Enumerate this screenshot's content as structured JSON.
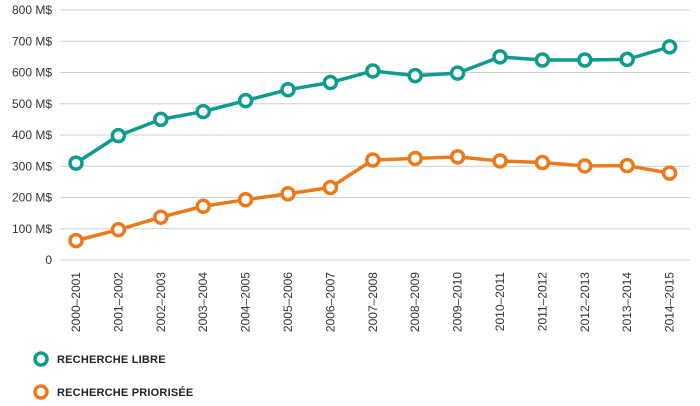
{
  "chart_data": {
    "type": "line",
    "categories": [
      "2000–2001",
      "2001–2002",
      "2002–2003",
      "2003–2004",
      "2004–2005",
      "2005–2006",
      "2006–2007",
      "2007–2008",
      "2008–2009",
      "2009–2010",
      "2010–2011",
      "2011–2012",
      "2012–2013",
      "2013–2014",
      "2014–2015"
    ],
    "y_ticks": [
      "0",
      "100 M$",
      "200 M$",
      "300 M$",
      "400 M$",
      "500 M$",
      "600 M$",
      "700 M$",
      "800 M$"
    ],
    "ylim": [
      0,
      800
    ],
    "grid": true,
    "legend_position": "bottom-left",
    "series": [
      {
        "name": "RECHERCHE LIBRE",
        "color": "#0f9b8e",
        "values": [
          310,
          398,
          450,
          475,
          510,
          545,
          568,
          605,
          590,
          598,
          650,
          640,
          640,
          642,
          682
        ]
      },
      {
        "name": "RECHERCHE PRIORISÉE",
        "color": "#ec7a1c",
        "values": [
          62,
          97,
          137,
          172,
          193,
          212,
          232,
          320,
          325,
          330,
          317,
          312,
          301,
          302,
          278
        ]
      }
    ]
  }
}
